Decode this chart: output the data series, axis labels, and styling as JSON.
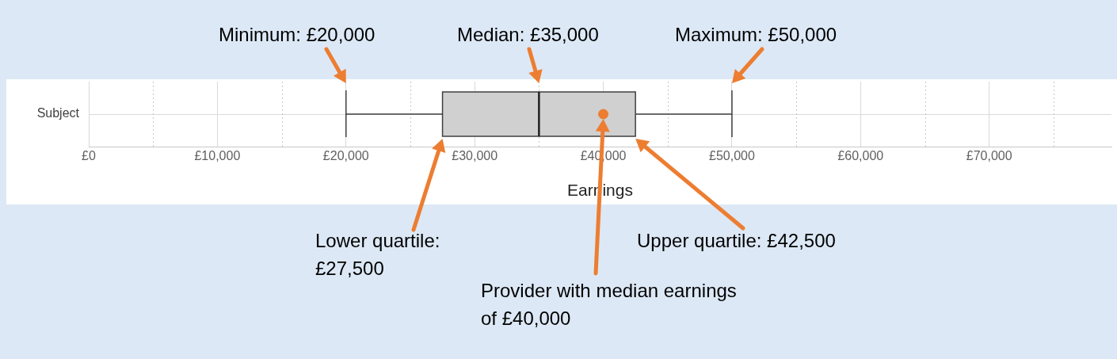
{
  "chart_data": {
    "type": "box",
    "orientation": "horizontal",
    "categories": [
      "Subject"
    ],
    "boxes": [
      {
        "low": 20000,
        "q1": 27500,
        "median": 35000,
        "q3": 42500,
        "high": 50000
      }
    ],
    "series": [
      {
        "type": "scatter",
        "color": "#ed7d31",
        "x": [
          "Subject"
        ],
        "values": [
          40000
        ]
      }
    ],
    "color": "#d0d0d0",
    "marker": "circle",
    "xlabel": "Earnings",
    "xlim": [
      0,
      79500
    ],
    "xticks": [
      {
        "value": 0,
        "label": "£0"
      },
      {
        "value": 5000,
        "label": null
      },
      {
        "value": 10000,
        "label": "£10,000"
      },
      {
        "value": 15000,
        "label": null
      },
      {
        "value": 20000,
        "label": "£20,000"
      },
      {
        "value": 25000,
        "label": null
      },
      {
        "value": 30000,
        "label": "£30,000"
      },
      {
        "value": 35000,
        "label": null
      },
      {
        "value": 40000,
        "label": "£40,000"
      },
      {
        "value": 45000,
        "label": null
      },
      {
        "value": 50000,
        "label": "£50,000"
      },
      {
        "value": 55000,
        "label": null
      },
      {
        "value": 60000,
        "label": "£60,000"
      },
      {
        "value": 65000,
        "label": null
      },
      {
        "value": 70000,
        "label": "£70,000"
      },
      {
        "value": 75000,
        "label": null
      }
    ],
    "grid": true,
    "legend": false,
    "annotations": [
      "Minimum: £20,000",
      "Median: £35,000",
      "Maximum: £50,000",
      "Lower quartile:\n£27,500",
      "Upper quartile: £42,500",
      "Provider with median earnings\nof £40,000"
    ]
  }
}
